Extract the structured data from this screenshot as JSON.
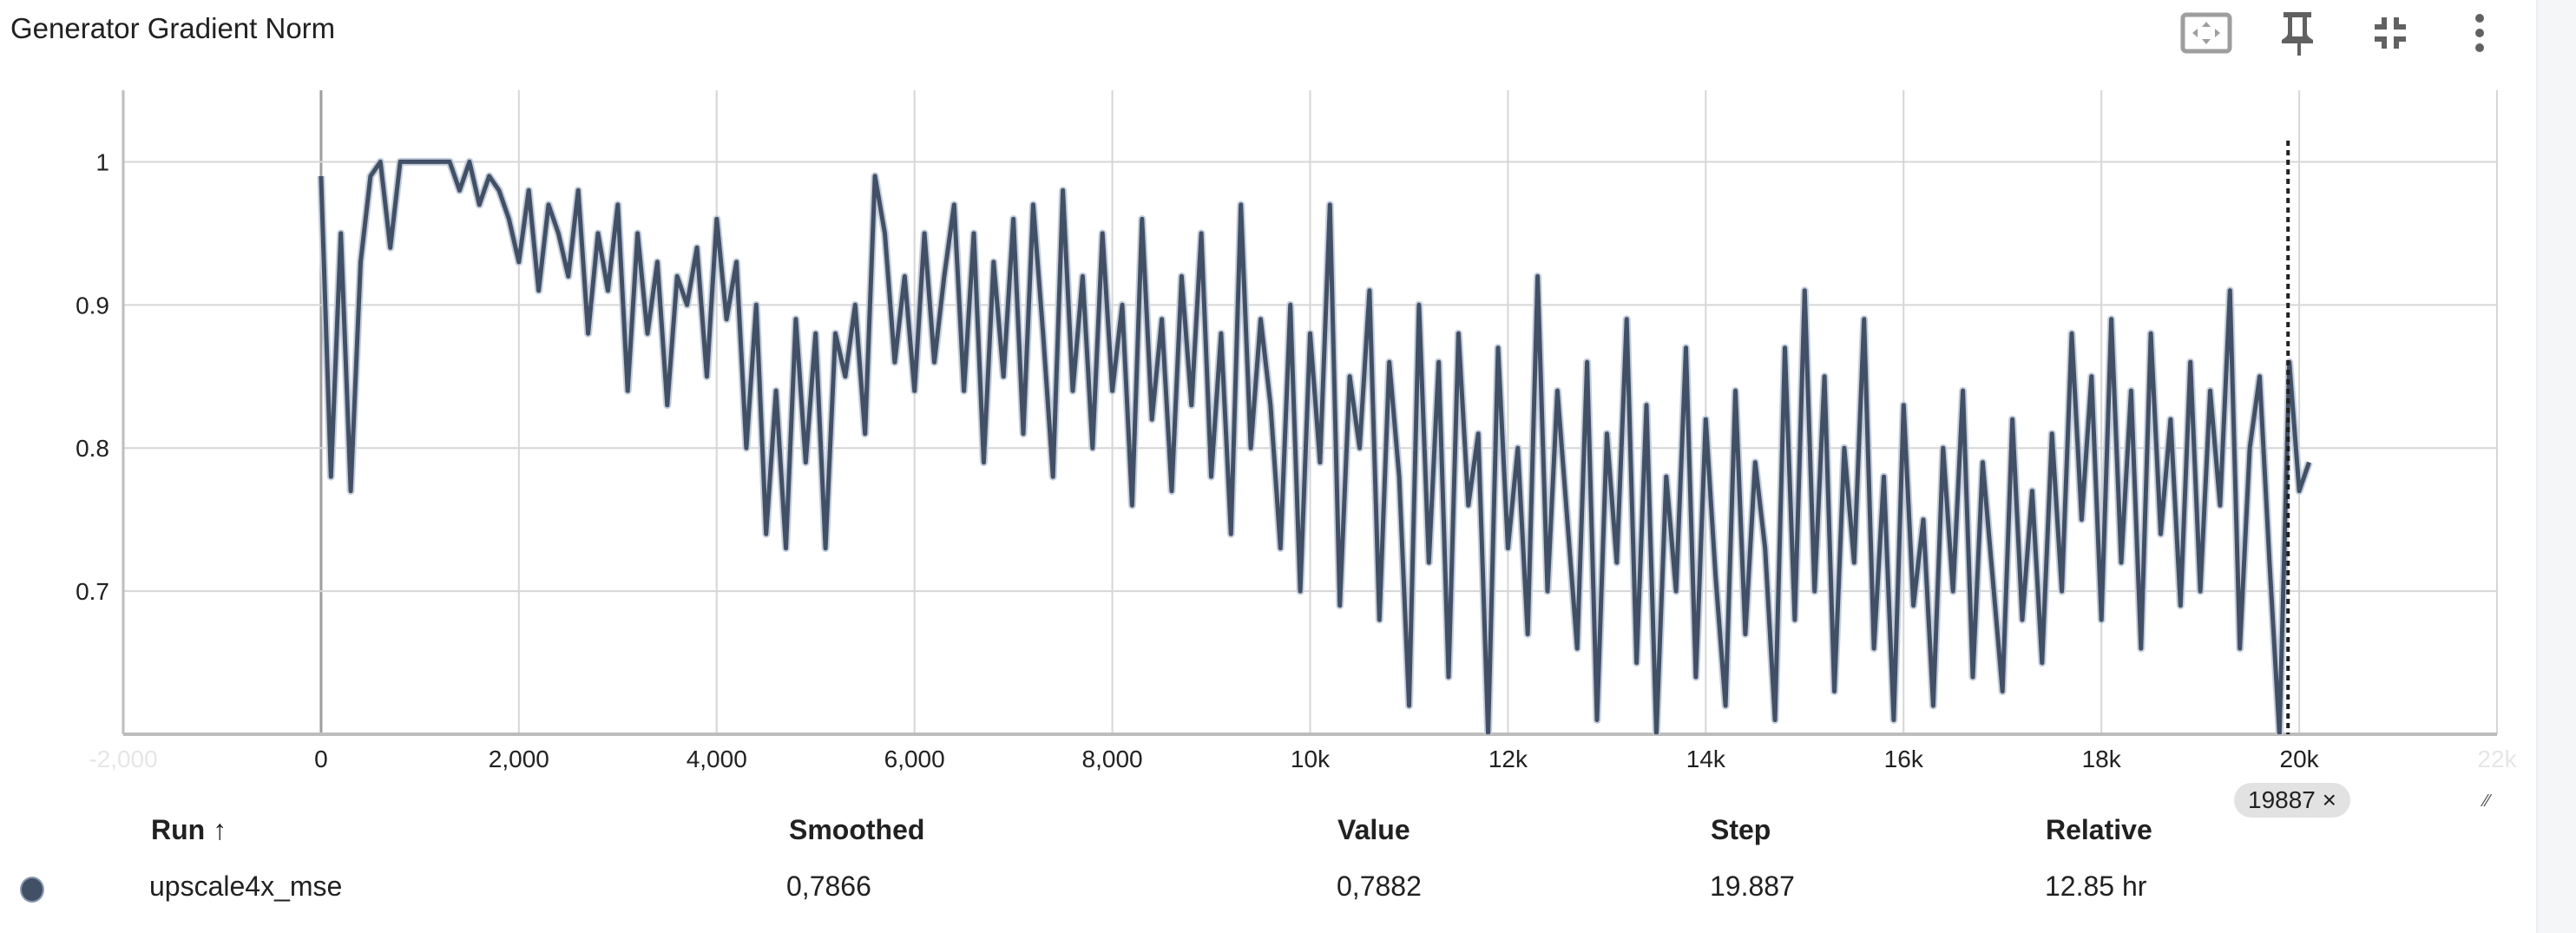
{
  "header": {
    "title": "Generator Gradient Norm",
    "icons": [
      "fit-domain-icon",
      "pin-icon",
      "collapse-icon",
      "more-vert-icon"
    ]
  },
  "chart_data": {
    "type": "line",
    "title": "Generator Gradient Norm",
    "xlabel": "",
    "ylabel": "",
    "xlim": [
      -2000,
      22000
    ],
    "ylim": [
      0.6,
      1.05
    ],
    "x_ticks": [
      {
        "v": -2000,
        "label": "-2,000"
      },
      {
        "v": 0,
        "label": "0"
      },
      {
        "v": 2000,
        "label": "2,000"
      },
      {
        "v": 4000,
        "label": "4,000"
      },
      {
        "v": 6000,
        "label": "6,000"
      },
      {
        "v": 8000,
        "label": "8,000"
      },
      {
        "v": 10000,
        "label": "10k"
      },
      {
        "v": 12000,
        "label": "12k"
      },
      {
        "v": 14000,
        "label": "14k"
      },
      {
        "v": 16000,
        "label": "16k"
      },
      {
        "v": 18000,
        "label": "18k"
      },
      {
        "v": 20000,
        "label": "20k"
      },
      {
        "v": 22000,
        "label": "22k"
      }
    ],
    "y_ticks": [
      {
        "v": 0.6,
        "label": "0.6"
      },
      {
        "v": 0.7,
        "label": "0.7"
      },
      {
        "v": 0.8,
        "label": "0.8"
      },
      {
        "v": 0.9,
        "label": "0.9"
      },
      {
        "v": 1,
        "label": "1"
      }
    ],
    "grid": true,
    "hover_step": 19887,
    "hover_chip": "19887 ×",
    "series": [
      {
        "name": "upscale4x_mse",
        "color": "#425066",
        "raw_color": "#c5cedc",
        "x_step": 100,
        "values": [
          0.99,
          0.78,
          0.95,
          0.77,
          0.93,
          0.99,
          1.0,
          0.94,
          1.0,
          1.0,
          1.0,
          1.0,
          1.0,
          1.0,
          0.98,
          1.0,
          0.97,
          0.99,
          0.98,
          0.96,
          0.93,
          0.98,
          0.91,
          0.97,
          0.95,
          0.92,
          0.98,
          0.88,
          0.95,
          0.91,
          0.97,
          0.84,
          0.95,
          0.88,
          0.93,
          0.83,
          0.92,
          0.9,
          0.94,
          0.85,
          0.96,
          0.89,
          0.93,
          0.8,
          0.9,
          0.74,
          0.84,
          0.73,
          0.89,
          0.79,
          0.88,
          0.73,
          0.88,
          0.85,
          0.9,
          0.81,
          0.99,
          0.95,
          0.86,
          0.92,
          0.84,
          0.95,
          0.86,
          0.92,
          0.97,
          0.84,
          0.95,
          0.79,
          0.93,
          0.85,
          0.96,
          0.81,
          0.97,
          0.88,
          0.78,
          0.98,
          0.84,
          0.92,
          0.8,
          0.95,
          0.84,
          0.9,
          0.76,
          0.96,
          0.82,
          0.89,
          0.77,
          0.92,
          0.83,
          0.95,
          0.78,
          0.88,
          0.74,
          0.97,
          0.8,
          0.89,
          0.83,
          0.73,
          0.9,
          0.7,
          0.88,
          0.79,
          0.97,
          0.69,
          0.85,
          0.8,
          0.91,
          0.68,
          0.86,
          0.78,
          0.62,
          0.9,
          0.72,
          0.86,
          0.64,
          0.88,
          0.76,
          0.81,
          0.6,
          0.87,
          0.73,
          0.8,
          0.67,
          0.92,
          0.7,
          0.84,
          0.75,
          0.66,
          0.86,
          0.61,
          0.81,
          0.72,
          0.89,
          0.65,
          0.83,
          0.6,
          0.78,
          0.7,
          0.87,
          0.64,
          0.82,
          0.71,
          0.62,
          0.84,
          0.67,
          0.79,
          0.73,
          0.61,
          0.87,
          0.68,
          0.91,
          0.7,
          0.85,
          0.63,
          0.8,
          0.72,
          0.89,
          0.66,
          0.78,
          0.61,
          0.83,
          0.69,
          0.75,
          0.62,
          0.8,
          0.7,
          0.84,
          0.64,
          0.79,
          0.71,
          0.63,
          0.82,
          0.68,
          0.77,
          0.65,
          0.81,
          0.7,
          0.88,
          0.75,
          0.85,
          0.68,
          0.89,
          0.72,
          0.84,
          0.66,
          0.88,
          0.74,
          0.82,
          0.69,
          0.86,
          0.7,
          0.84,
          0.76,
          0.91,
          0.66,
          0.8,
          0.85,
          0.72,
          0.6,
          0.86,
          0.77,
          0.79
        ]
      }
    ]
  },
  "table": {
    "headers": {
      "run": "Run ↑",
      "smoothed": "Smoothed",
      "value": "Value",
      "step": "Step",
      "relative": "Relative"
    },
    "rows": [
      {
        "run": "upscale4x_mse",
        "color": "#425066",
        "smoothed": "0,7866",
        "value": "0,7882",
        "step": "19.887",
        "relative": "12.85 hr"
      }
    ]
  }
}
